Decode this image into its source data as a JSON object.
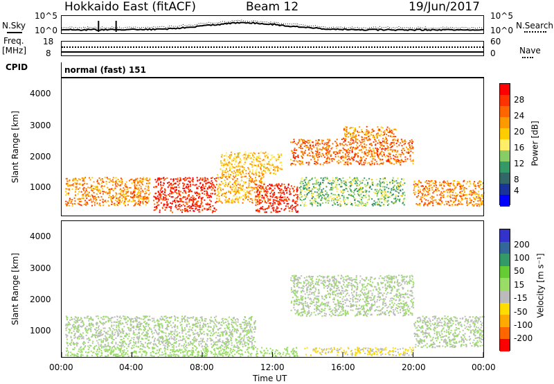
{
  "header": {
    "title": "Hokkaido East (fitACF)",
    "beam": "Beam 12",
    "date": "19/Jun/2017"
  },
  "noise_panel": {
    "left_label": "N.Sky",
    "right_label": "N.Search",
    "ticks_left": [
      "10^5",
      "10^0"
    ],
    "ticks_right": [
      "10^5",
      "10^0"
    ]
  },
  "freq_panel": {
    "left_label_line1": "Freq.",
    "left_label_line2": "[MHz]",
    "right_label": "Nave",
    "ticks_left": [
      "18",
      "8"
    ],
    "ticks_right": [
      "60",
      "0"
    ]
  },
  "cpid_panel": {
    "label": "CPID",
    "mode": "normal (fast) 151"
  },
  "power_panel": {
    "ylabel": "Slant Range [km]",
    "yticks": [
      "4000",
      "3000",
      "2000",
      "1000"
    ],
    "colorbar_label": "Power [dB]",
    "colorbar_ticks": [
      "28",
      "24",
      "20",
      "16",
      "12",
      "8",
      "4"
    ],
    "colors": [
      "#ff0000",
      "#ff3300",
      "#ff6600",
      "#ff9900",
      "#ffcc00",
      "#ffee66",
      "#88cc66",
      "#339966",
      "#336666",
      "#1a3399",
      "#0000ff"
    ]
  },
  "velocity_panel": {
    "ylabel": "Slant Range [km]",
    "yticks": [
      "4000",
      "3000",
      "2000",
      "1000"
    ],
    "colorbar_label": "Velocity [m s⁻¹]",
    "colorbar_ticks": [
      "200",
      "100",
      "50",
      "15",
      "-15",
      "-50",
      "-100",
      "-200"
    ],
    "colors": [
      "#3333cc",
      "#336699",
      "#339966",
      "#66cc33",
      "#99dd66",
      "#bbbbbb",
      "#ffdd00",
      "#ffaa00",
      "#ff6600",
      "#ff0000"
    ]
  },
  "xaxis": {
    "label": "Time UT",
    "ticks": [
      "00:00",
      "04:00",
      "08:00",
      "12:00",
      "16:00",
      "20:00",
      "00:00"
    ]
  },
  "chart_data": {
    "type": "heatmap",
    "title": "Hokkaido East (fitACF)",
    "x_unit": "hours UT",
    "xlim": [
      0,
      24
    ],
    "ylim": [
      180,
      4500
    ],
    "xlabel": "Time UT",
    "ylabel": "Slant Range [km]",
    "power_scale_dB": [
      0,
      30
    ],
    "velocity_scale_ms": [
      -250,
      250
    ],
    "power_regions": [
      {
        "t0": 0.2,
        "t1": 5.0,
        "r0": 500,
        "r1": 1400,
        "power": 22
      },
      {
        "t0": 5.2,
        "t1": 8.8,
        "r0": 300,
        "r1": 1400,
        "power": 28
      },
      {
        "t0": 8.8,
        "t1": 11.5,
        "r0": 600,
        "r1": 1500,
        "power": 20
      },
      {
        "t0": 11.0,
        "t1": 13.4,
        "r0": 300,
        "r1": 1200,
        "power": 28
      },
      {
        "t0": 9.0,
        "t1": 12.5,
        "r0": 1500,
        "r1": 2200,
        "power": 18
      },
      {
        "t0": 13.0,
        "t1": 20.0,
        "r0": 1800,
        "r1": 2600,
        "power": 24
      },
      {
        "t0": 16.0,
        "t1": 19.0,
        "r0": 2600,
        "r1": 3000,
        "power": 22
      },
      {
        "t0": 20.0,
        "t1": 24.0,
        "r0": 500,
        "r1": 1300,
        "power": 22
      },
      {
        "t0": 13.5,
        "t1": 19.5,
        "r0": 500,
        "r1": 1400,
        "power": 12
      }
    ],
    "velocity_regions": [
      {
        "t0": 0.2,
        "t1": 11.0,
        "r0": 500,
        "r1": 1500,
        "velocity": 0
      },
      {
        "t0": 0.2,
        "t1": 13.4,
        "r0": 200,
        "r1": 500,
        "velocity": 30
      },
      {
        "t0": 13.0,
        "t1": 20.0,
        "r0": 1500,
        "r1": 2800,
        "velocity": 0
      },
      {
        "t0": 13.8,
        "t1": 20.0,
        "r0": 250,
        "r1": 500,
        "velocity": -60
      },
      {
        "t0": 20.0,
        "t1": 24.0,
        "r0": 500,
        "r1": 1500,
        "velocity": 0
      }
    ]
  }
}
